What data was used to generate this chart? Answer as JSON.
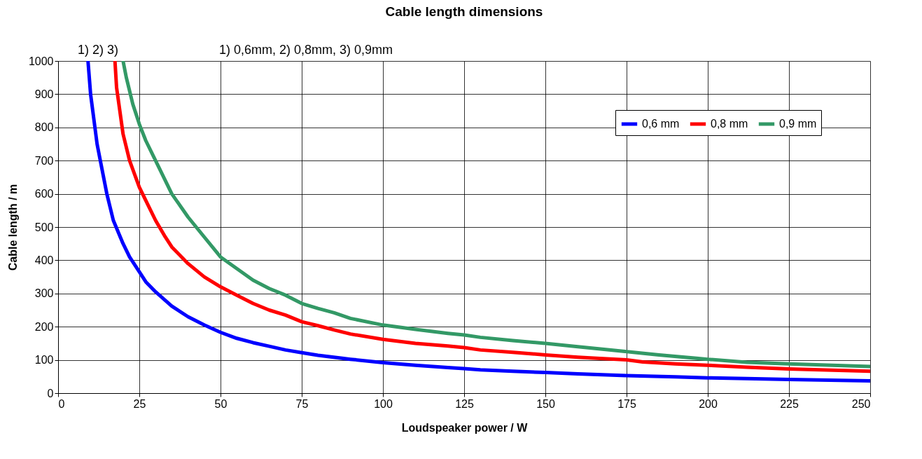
{
  "chart_data": {
    "type": "line",
    "title": "Cable length dimensions",
    "xlabel": "Loudspeaker power / W",
    "ylabel": "Cable length / m",
    "xlim": [
      0,
      250
    ],
    "xticks": [
      0,
      25,
      50,
      75,
      100,
      125,
      150,
      175,
      200,
      225,
      250
    ],
    "ylim": [
      0,
      1000
    ],
    "yticks": [
      0,
      100,
      200,
      300,
      400,
      500,
      600,
      700,
      800,
      900,
      1000
    ],
    "grid": true,
    "legend": "top right",
    "annotations": [
      "1)  2) 3)",
      "1) 0,6mm, 2) 0,8mm, 3) 0,9mm"
    ],
    "series": [
      {
        "name": "0,6 mm",
        "color": "#0000ff",
        "x": [
          9.2,
          10,
          12,
          13,
          15,
          17,
          20,
          22,
          25,
          27,
          30,
          35,
          40,
          45,
          50,
          55,
          60,
          65,
          70,
          75,
          80,
          90,
          100,
          110,
          120,
          125,
          130,
          140,
          150,
          160,
          175,
          190,
          200,
          212,
          225,
          250
        ],
        "values": [
          1000,
          900,
          750,
          700,
          600,
          520,
          450,
          410,
          365,
          335,
          305,
          262,
          230,
          205,
          183,
          165,
          152,
          141,
          130,
          122,
          114,
          102,
          92,
          84,
          77,
          74,
          70,
          66,
          62,
          58,
          53,
          49,
          46,
          44,
          41,
          37
        ]
      },
      {
        "name": "0,8 mm",
        "color": "#ff0000",
        "x": [
          17.5,
          18,
          19,
          20,
          22,
          25,
          27,
          30,
          33,
          35,
          40,
          45,
          50,
          55,
          60,
          65,
          70,
          75,
          80,
          85,
          90,
          100,
          110,
          120,
          125,
          130,
          140,
          150,
          160,
          175,
          180,
          190,
          200,
          212,
          225,
          250
        ],
        "values": [
          1000,
          920,
          850,
          780,
          700,
          620,
          580,
          520,
          470,
          440,
          390,
          350,
          320,
          295,
          270,
          250,
          235,
          215,
          203,
          190,
          178,
          162,
          150,
          142,
          137,
          130,
          123,
          115,
          108,
          100,
          94,
          88,
          84,
          78,
          73,
          66
        ]
      },
      {
        "name": "0,9 mm",
        "color": "#339966",
        "x": [
          20,
          21,
          22,
          23,
          25,
          27,
          30,
          33,
          35,
          40,
          45,
          50,
          55,
          60,
          65,
          70,
          75,
          80,
          85,
          90,
          100,
          110,
          120,
          125,
          130,
          140,
          150,
          160,
          175,
          185,
          200,
          212,
          225,
          250
        ],
        "values": [
          1000,
          950,
          910,
          870,
          810,
          760,
          700,
          640,
          600,
          530,
          470,
          410,
          375,
          340,
          315,
          295,
          270,
          255,
          242,
          225,
          205,
          192,
          180,
          175,
          168,
          158,
          150,
          140,
          125,
          115,
          102,
          93,
          88,
          80
        ]
      }
    ]
  }
}
